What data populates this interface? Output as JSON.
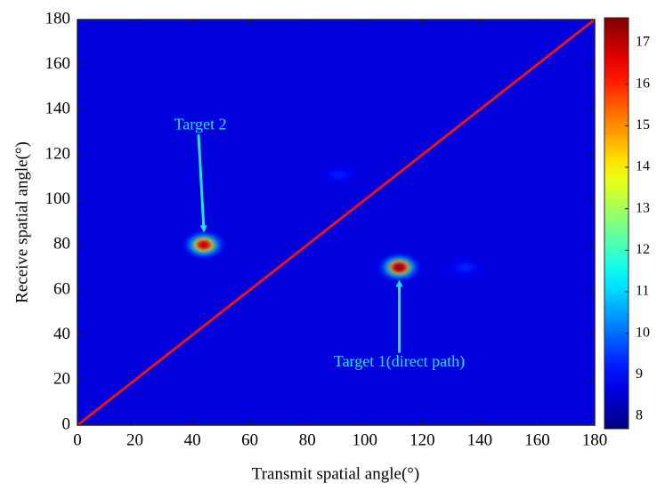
{
  "chart_data": {
    "type": "heatmap",
    "xlabel": "Transmit spatial angle(°)",
    "ylabel": "Receive spatial angle(°)",
    "xlim": [
      0,
      180
    ],
    "ylim": [
      0,
      180
    ],
    "xticks": [
      0,
      20,
      40,
      60,
      80,
      100,
      120,
      140,
      160,
      180
    ],
    "yticks": [
      0,
      20,
      40,
      60,
      80,
      100,
      120,
      140,
      160,
      180
    ],
    "colormap": "jet",
    "clim": [
      7.7,
      17.6
    ],
    "cticks": [
      8,
      9,
      10,
      11,
      12,
      13,
      14,
      15,
      16,
      17
    ],
    "background": 8.6,
    "peaks": [
      {
        "label": "Target 2",
        "x": 44,
        "y": 80,
        "value": 17.0
      },
      {
        "label": "Target 1(direct path)",
        "x": 112,
        "y": 70,
        "value": 17.6
      },
      {
        "x": 135,
        "y": 70,
        "value": 9.3
      },
      {
        "x": 91,
        "y": 111,
        "value": 9.2
      }
    ],
    "line": {
      "x": [
        0,
        180
      ],
      "y": [
        0,
        180
      ],
      "color": "#e8161b"
    },
    "annotation_color": "#19e6f2"
  }
}
